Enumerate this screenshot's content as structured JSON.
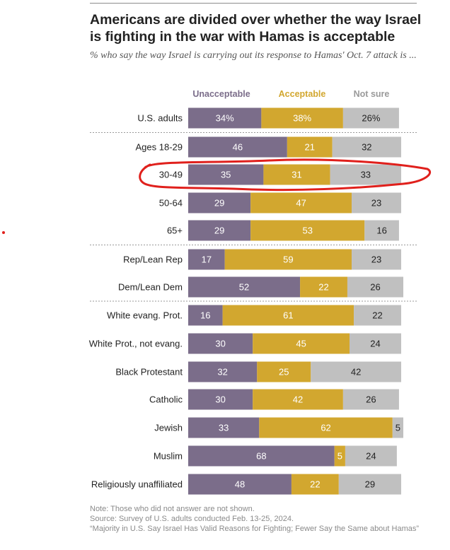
{
  "header": {
    "title": "Americans are divided over whether the way Israel is fighting in the war with Hamas is acceptable",
    "subtitle": "% who say the way Israel is carrying out its response to Hamas' Oct. 7 attack is ..."
  },
  "footer": {
    "note": "Note: Those who did not answer are not shown.",
    "source": "Source: Survey of U.S. adults conducted Feb. 13-25, 2024.",
    "report": "“Majority in U.S. Say Israel Has Valid Reasons for Fighting; Fewer Say the Same about Hamas”"
  },
  "colors": {
    "unacceptable": "#7b6d8a",
    "acceptable": "#d2a72f",
    "not_sure": "#c0c0c0",
    "annotation": "#e0201c"
  },
  "annotation": {
    "highlighted_row": "30-49"
  },
  "chart_data": {
    "type": "bar",
    "orientation": "horizontal",
    "stacked": true,
    "xlim": [
      0,
      100
    ],
    "legend": [
      "Unacceptable",
      "Acceptable",
      "Not sure"
    ],
    "legend_position": "top",
    "categories": [
      "U.S. adults",
      "Ages 18-29",
      "30-49",
      "50-64",
      "65+",
      "Rep/Lean Rep",
      "Dem/Lean Dem",
      "White evang. Prot.",
      "White Prot., not evang.",
      "Black Protestant",
      "Catholic",
      "Jewish",
      "Muslim",
      "Religiously unaffiliated"
    ],
    "series": [
      {
        "name": "Unacceptable",
        "values": [
          34,
          46,
          35,
          29,
          29,
          17,
          52,
          16,
          30,
          32,
          30,
          33,
          68,
          48
        ],
        "labels": [
          "34%",
          "46",
          "35",
          "29",
          "29",
          "17",
          "52",
          "16",
          "30",
          "32",
          "30",
          "33",
          "68",
          "48"
        ]
      },
      {
        "name": "Acceptable",
        "values": [
          38,
          21,
          31,
          47,
          53,
          59,
          22,
          61,
          45,
          25,
          42,
          62,
          5,
          22
        ],
        "labels": [
          "38%",
          "21",
          "31",
          "47",
          "53",
          "59",
          "22",
          "61",
          "45",
          "25",
          "42",
          "62",
          "5",
          "22"
        ]
      },
      {
        "name": "Not sure",
        "values": [
          26,
          32,
          33,
          23,
          16,
          23,
          26,
          22,
          24,
          42,
          26,
          5,
          24,
          29
        ],
        "labels": [
          "26%",
          "32",
          "33",
          "23",
          "16",
          "23",
          "26",
          "22",
          "24",
          "42",
          "26",
          "5",
          "24",
          "29"
        ]
      }
    ],
    "group_separators_after": [
      "U.S. adults",
      "65+",
      "Dem/Lean Dem"
    ]
  }
}
